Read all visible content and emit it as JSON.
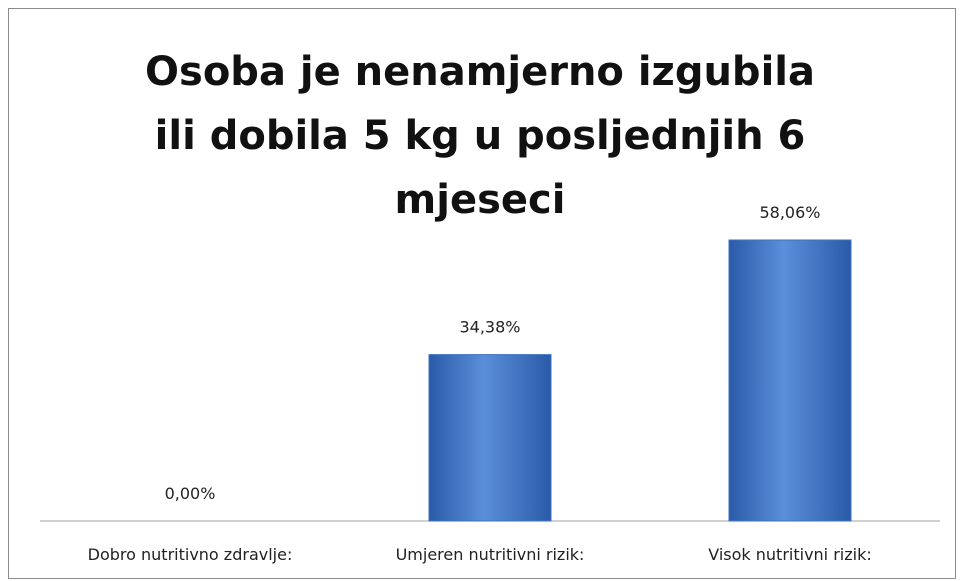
{
  "chart_data": {
    "type": "bar",
    "title": "Osoba je nenamjerno izgubila ili dobila 5 kg u posljednjih 6 mjeseci",
    "categories": [
      "Dobro nutritivno zdravlje:",
      "Umjeren nutritivni rizik:",
      "Visok nutritivni rizik:"
    ],
    "values": [
      0,
      34.38,
      58.06
    ],
    "value_labels": [
      "0,00%",
      "34,38%",
      "58,06%"
    ],
    "color": "#3d72c4"
  }
}
